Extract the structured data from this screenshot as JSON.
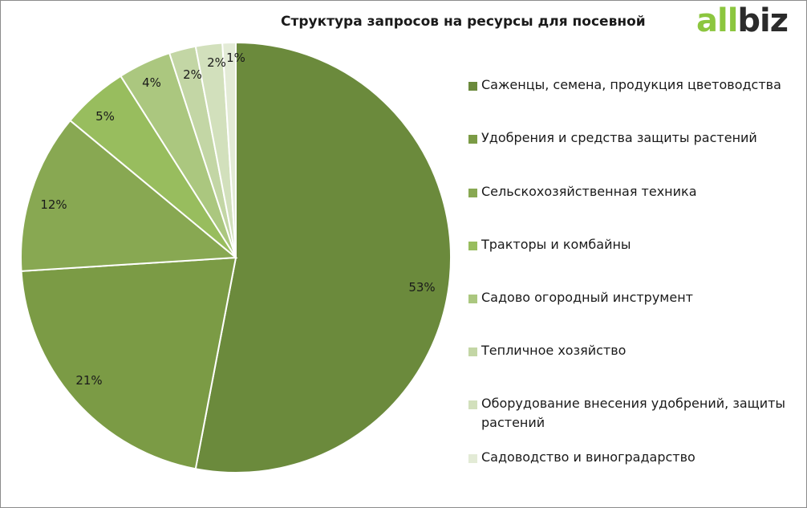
{
  "logo": {
    "part1": "all",
    "part2": "biz"
  },
  "chart_data": {
    "type": "pie",
    "title": "Структура запросов на ресурсы для посевной",
    "legend_position": "right",
    "slices": [
      {
        "name": "Саженцы, семена, продукция цветоводства",
        "value": 53,
        "label": "53%",
        "color": "#6b8a3c"
      },
      {
        "name": "Удобрения и средства защиты растений",
        "value": 21,
        "label": "21%",
        "color": "#7b9b45"
      },
      {
        "name": "Сельскохозяйственная техника",
        "value": 12,
        "label": "12%",
        "color": "#88a852"
      },
      {
        "name": "Тракторы и комбайны",
        "value": 5,
        "label": "5%",
        "color": "#98bd5e"
      },
      {
        "name": "Садово огородный инструмент",
        "value": 4,
        "label": "4%",
        "color": "#abc77f"
      },
      {
        "name": "Тепличное хозяйство",
        "value": 2,
        "label": "2%",
        "color": "#c3d6a5"
      },
      {
        "name": "Оборудование внесения удобрений, защиты растений",
        "value": 2,
        "label": "2%",
        "color": "#d2e0bc"
      },
      {
        "name": "Садоводство и виноградарство",
        "value": 1,
        "label": "1%",
        "color": "#e3ebd6"
      }
    ]
  }
}
